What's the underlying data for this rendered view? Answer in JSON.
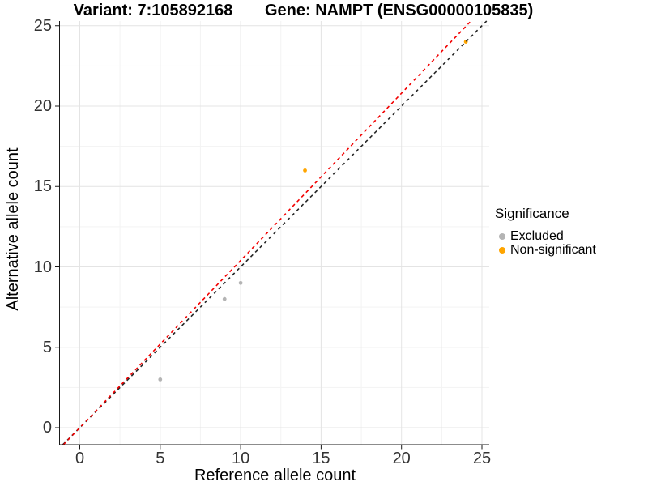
{
  "titles": {
    "left": "Variant: 7:105892168",
    "right": "Gene: NAMPT (ENSG00000105835)"
  },
  "axes": {
    "x_label": "Reference allele count",
    "y_label": "Alternative allele count"
  },
  "legend": {
    "title": "Significance",
    "items": [
      {
        "label": "Excluded",
        "color": "#b4b4b4"
      },
      {
        "label": "Non-significant",
        "color": "#ffa500"
      }
    ]
  },
  "chart_data": {
    "type": "scatter",
    "title": "Variant: 7:105892168 / Gene: NAMPT (ENSG00000105835)",
    "xlabel": "Reference allele count",
    "ylabel": "Alternative allele count",
    "xlim": [
      0,
      25
    ],
    "ylim": [
      0,
      25
    ],
    "x_ticks": [
      0,
      5,
      10,
      15,
      20,
      25
    ],
    "y_ticks": [
      0,
      5,
      10,
      15,
      20,
      25
    ],
    "minor_ticks": [
      2.5,
      7.5,
      12.5,
      17.5,
      22.5
    ],
    "grid": {
      "major": true,
      "minor": true
    },
    "legend_position": "right",
    "series": [
      {
        "name": "Excluded",
        "color": "#b4b4b4",
        "points": [
          [
            5,
            3
          ],
          [
            9,
            8
          ],
          [
            10,
            9
          ]
        ]
      },
      {
        "name": "Non-significant",
        "color": "#ffa500",
        "points": [
          [
            14,
            16
          ],
          [
            24,
            24
          ]
        ]
      }
    ],
    "reference_lines": [
      {
        "name": "identity",
        "slope": 1.0,
        "intercept": 0,
        "color": "#262626",
        "dash": true
      },
      {
        "name": "expected-ratio",
        "slope": 1.04,
        "intercept": 0,
        "color": "#f20000",
        "dash": true
      }
    ]
  },
  "colors": {
    "grid_major": "#e4e4e4",
    "grid_minor": "#f3f3f3",
    "axis": "#1a1a1a"
  }
}
